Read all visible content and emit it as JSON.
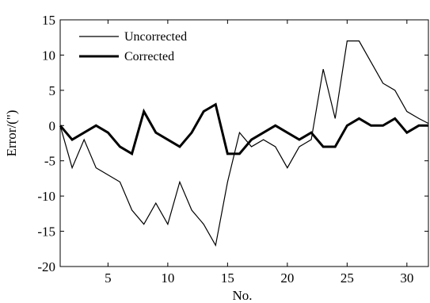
{
  "chart_data": {
    "type": "line",
    "xlabel": "No.",
    "ylabel": "Error/(\")",
    "xlim": [
      1,
      31.8
    ],
    "ylim": [
      -20,
      15
    ],
    "xticks": [
      5,
      10,
      15,
      20,
      25,
      30
    ],
    "yticks": [
      -20,
      -15,
      -10,
      -5,
      0,
      5,
      10,
      15
    ],
    "grid": false,
    "legend_position": "top-left",
    "x": [
      1,
      2,
      3,
      4,
      5,
      6,
      7,
      8,
      9,
      10,
      11,
      12,
      13,
      14,
      15,
      16,
      17,
      18,
      19,
      20,
      21,
      22,
      23,
      24,
      25,
      26,
      27,
      28,
      29,
      30,
      31,
      31.8
    ],
    "series": [
      {
        "name": "Uncorrected",
        "color": "#000000",
        "weight": "thin",
        "values": [
          0,
          -6,
          -2,
          -6,
          -7,
          -8,
          -12,
          -14,
          -11,
          -14,
          -8,
          -12,
          -14,
          -17,
          -8,
          -1,
          -3,
          -2,
          -3,
          -6,
          -3,
          -2,
          8,
          1,
          12,
          12,
          9,
          6,
          5,
          2,
          1,
          0.3
        ]
      },
      {
        "name": "Corrected",
        "color": "#000000",
        "weight": "thick",
        "values": [
          0,
          -2,
          -1,
          0,
          -1,
          -3,
          -4,
          2,
          -1,
          -2,
          -3,
          -1,
          2,
          3,
          -4,
          -4,
          -2,
          -1,
          0,
          -1,
          -2,
          -1,
          -3,
          -3,
          0,
          1,
          0,
          0,
          1,
          -1,
          0,
          0
        ]
      }
    ]
  }
}
